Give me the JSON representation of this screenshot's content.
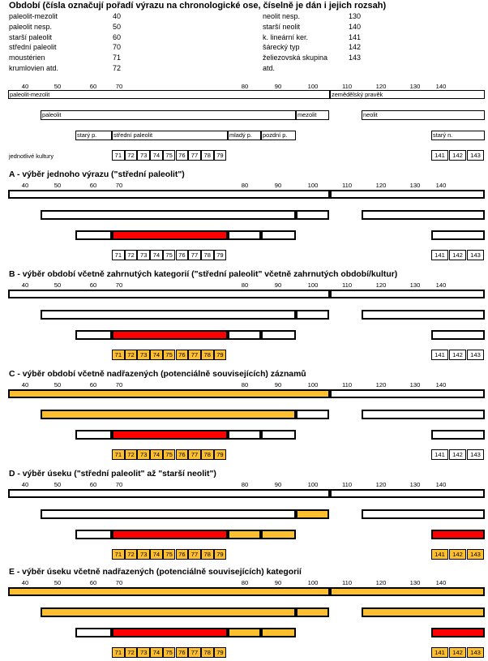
{
  "title": "Období (čísla označují pořadí výrazu na chronologické ose, číselně je dán i jejich rozsah)",
  "legend": [
    {
      "name": "paleolit-mezolit",
      "code": "40"
    },
    {
      "name": "paleolit nesp.",
      "code": "50"
    },
    {
      "name": "starší paleolit",
      "code": "60"
    },
    {
      "name": "střední paleolit",
      "code": "70"
    },
    {
      "name": "moustérien",
      "code": "71"
    },
    {
      "name": "krumlovien atd.",
      "code": "72"
    },
    {
      "name": "neolit nesp.",
      "code": "130"
    },
    {
      "name": "starší neolit",
      "code": "140"
    },
    {
      "name": "k. lineární ker.",
      "code": "141"
    },
    {
      "name": "šárecký typ",
      "code": "142"
    },
    {
      "name": "želiezovská skupina",
      "code": "143"
    },
    {
      "name": "atd.",
      "code": ""
    }
  ],
  "axis_ticks": [
    "40",
    "50",
    "60",
    "70",
    "80",
    "90",
    "100",
    "110",
    "120",
    "130",
    "140"
  ],
  "colors": {
    "selected": "#ff0000",
    "included": "#fdbf2d",
    "empty": "#ffffff"
  },
  "overview": {
    "row1": [
      "paleolit-mezolit",
      "zemědělský pravěk"
    ],
    "row2": [
      "paleolit",
      "mezolit",
      "neolit"
    ],
    "row3": [
      "starý p.",
      "střední paleolit",
      "mladý p.",
      "pozdní p.",
      "starý n."
    ],
    "cultures_label": "jednotlivé kultury"
  },
  "cultures_left": [
    "71",
    "72",
    "73",
    "74",
    "75",
    "76",
    "77",
    "78",
    "79"
  ],
  "cultures_right": [
    "141",
    "142",
    "143"
  ],
  "sections": [
    {
      "title": "A - výběr jednoho výrazu (\"střední paleolit\")",
      "states": {
        "r1": [
          "empty",
          "empty"
        ],
        "r2": [
          "empty",
          "empty",
          "empty"
        ],
        "r3": [
          "empty",
          "red",
          "empty",
          "empty",
          "empty"
        ],
        "cl": "empty",
        "cr": "empty"
      }
    },
    {
      "title": "B - výběr období včetně zahrnutých kategorií (\"střední paleolit\" včetně zahrnutých období/kultur)",
      "states": {
        "r1": [
          "empty",
          "empty"
        ],
        "r2": [
          "empty",
          "empty",
          "empty"
        ],
        "r3": [
          "empty",
          "red",
          "empty",
          "empty",
          "empty"
        ],
        "cl": "orange",
        "cr": "empty"
      }
    },
    {
      "title": "C - výběr období včetně nadřazených (potenciálně souvisejících) záznamů",
      "states": {
        "r1": [
          "orange",
          "empty"
        ],
        "r2": [
          "orange",
          "empty",
          "empty"
        ],
        "r3": [
          "empty",
          "red",
          "empty",
          "empty",
          "empty"
        ],
        "cl": "orange",
        "cr": "empty"
      }
    },
    {
      "title": "D - výběr úseku (\"střední paleolit\" až \"starší neolit\")",
      "states": {
        "r1": [
          "empty",
          "empty"
        ],
        "r2": [
          "empty",
          "orange",
          "empty"
        ],
        "r3": [
          "empty",
          "red",
          "orange",
          "orange",
          "red"
        ],
        "cl": "orange",
        "cr": "orange"
      }
    },
    {
      "title": "E - výběr úseku včetně nadřazených (potenciálně souvisejících) kategorií",
      "states": {
        "r1": [
          "orange",
          "orange"
        ],
        "r2": [
          "orange",
          "orange",
          "orange"
        ],
        "r3": [
          "empty",
          "red",
          "orange",
          "orange",
          "red"
        ],
        "cl": "orange",
        "cr": "orange"
      }
    }
  ]
}
